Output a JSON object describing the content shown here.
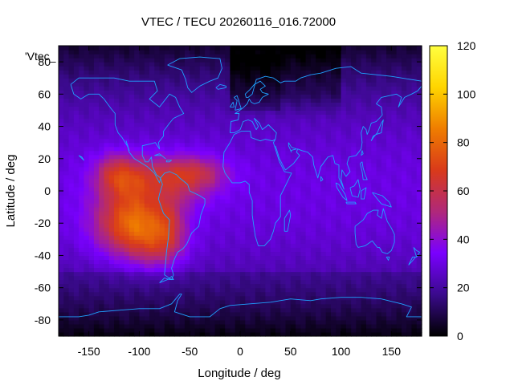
{
  "chart_data": {
    "type": "heatmap",
    "title": "VTEC / TECU 20260116_016.72000",
    "xlabel": "Longitude / deg",
    "ylabel": "Latitude / deg",
    "key_label": "'Vtec_",
    "xlim": [
      -180,
      180
    ],
    "ylim": [
      -90,
      90
    ],
    "xticks": [
      -150,
      -100,
      -50,
      0,
      50,
      100,
      150
    ],
    "yticks": [
      -80,
      -60,
      -40,
      -20,
      0,
      20,
      40,
      60,
      80
    ],
    "colorbar": {
      "range": [
        0,
        120
      ],
      "ticks": [
        0,
        20,
        40,
        60,
        80,
        100,
        120
      ],
      "palette": [
        "#000000",
        "#3a0a8c",
        "#7a00ff",
        "#b0287a",
        "#d93a1a",
        "#ef7d00",
        "#ffd500",
        "#ffff40"
      ]
    },
    "anomalies": [
      {
        "lon": -105,
        "lat": -20,
        "amp": 52,
        "sx": 26,
        "sy": 14
      },
      {
        "lon": -110,
        "lat": 8,
        "amp": 30,
        "sx": 22,
        "sy": 10
      },
      {
        "lon": -125,
        "lat": 12,
        "amp": 14,
        "sx": 12,
        "sy": 8
      },
      {
        "lon": -55,
        "lat": 8,
        "amp": 26,
        "sx": 24,
        "sy": 10
      },
      {
        "lon": -45,
        "lat": 12,
        "amp": 12,
        "sx": 25,
        "sy": 6
      },
      {
        "lon": -80,
        "lat": -35,
        "amp": 18,
        "sx": 18,
        "sy": 10
      },
      {
        "lon": -70,
        "lat": -20,
        "amp": 14,
        "sx": 10,
        "sy": 12
      }
    ]
  }
}
